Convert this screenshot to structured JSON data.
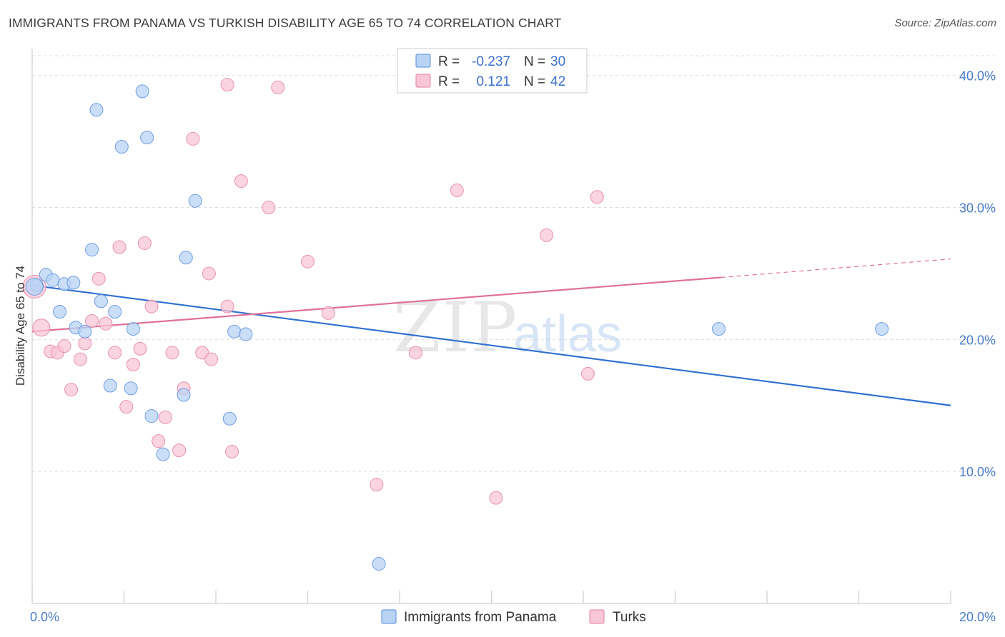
{
  "title": "IMMIGRANTS FROM PANAMA VS TURKISH DISABILITY AGE 65 TO 74 CORRELATION CHART",
  "source": "Source: ZipAtlas.com",
  "watermark": {
    "zip": "ZIP",
    "atlas": "atlas"
  },
  "legend": {
    "rows": [
      {
        "r_label": "R =",
        "r_value": "-0.237",
        "n_label": "N =",
        "n_value": "30"
      },
      {
        "r_label": "R =",
        "r_value": "0.121",
        "n_label": "N =",
        "n_value": "42"
      }
    ]
  },
  "bottom_legend": [
    "Immigrants from Panama",
    "Turks"
  ],
  "colors": {
    "blue_fill": "#b9d3f5",
    "blue_stroke": "#6d9de0",
    "blue_line": "#2f6fcf",
    "pink_fill": "#f8c6d6",
    "pink_stroke": "#e892ad",
    "pink_line": "#e0709a",
    "tick_text": "#4a7cc9",
    "grid": "#dddddd"
  },
  "chart_data": {
    "type": "scatter",
    "title": "IMMIGRANTS FROM PANAMA VS TURKISH DISABILITY AGE 65 TO 74 CORRELATION CHART",
    "xlabel": "",
    "ylabel": "Disability Age 65 to 74",
    "xlim": [
      0,
      20
    ],
    "ylim": [
      0,
      41.5
    ],
    "x_tick_labels": [
      "0.0%",
      "20.0%"
    ],
    "y_ticks": [
      10,
      20,
      30,
      40
    ],
    "y_tick_labels": [
      "10.0%",
      "20.0%",
      "30.0%",
      "40.0%"
    ],
    "grid": true,
    "legend_placement": "top-center",
    "series": [
      {
        "name": "Immigrants from Panama",
        "color": "#b9d3f5",
        "r": -0.237,
        "n": 30,
        "points": [
          [
            0.1,
            24.1
          ],
          [
            0.3,
            24.9
          ],
          [
            0.45,
            24.5
          ],
          [
            0.7,
            24.2
          ],
          [
            0.9,
            24.3
          ],
          [
            0.6,
            22.1
          ],
          [
            0.95,
            20.9
          ],
          [
            1.15,
            20.6
          ],
          [
            1.3,
            26.8
          ],
          [
            1.5,
            22.9
          ],
          [
            1.8,
            22.1
          ],
          [
            1.4,
            37.4
          ],
          [
            1.95,
            34.6
          ],
          [
            2.4,
            38.8
          ],
          [
            2.5,
            35.3
          ],
          [
            2.15,
            16.3
          ],
          [
            1.7,
            16.5
          ],
          [
            2.2,
            20.8
          ],
          [
            2.6,
            14.2
          ],
          [
            2.85,
            11.3
          ],
          [
            3.35,
            26.2
          ],
          [
            3.55,
            30.5
          ],
          [
            3.3,
            15.8
          ],
          [
            4.4,
            20.6
          ],
          [
            4.65,
            20.4
          ],
          [
            4.3,
            14.0
          ],
          [
            7.55,
            3.0
          ],
          [
            14.95,
            20.8
          ],
          [
            18.5,
            20.8
          ],
          [
            0.05,
            24.0
          ]
        ],
        "trend": {
          "x": [
            0,
            20
          ],
          "y": [
            24.1,
            15.0
          ]
        }
      },
      {
        "name": "Turks",
        "color": "#f8c6d6",
        "r": 0.121,
        "n": 42,
        "points": [
          [
            0.05,
            24.0
          ],
          [
            0.2,
            20.9
          ],
          [
            0.4,
            19.1
          ],
          [
            0.55,
            19.0
          ],
          [
            0.7,
            19.5
          ],
          [
            0.85,
            16.2
          ],
          [
            1.05,
            18.5
          ],
          [
            1.15,
            19.7
          ],
          [
            1.3,
            21.4
          ],
          [
            1.45,
            24.6
          ],
          [
            1.6,
            21.2
          ],
          [
            1.8,
            19.0
          ],
          [
            1.9,
            27.0
          ],
          [
            2.2,
            18.1
          ],
          [
            2.35,
            19.3
          ],
          [
            2.45,
            27.3
          ],
          [
            2.6,
            22.5
          ],
          [
            2.05,
            14.9
          ],
          [
            2.75,
            12.3
          ],
          [
            2.9,
            14.1
          ],
          [
            3.05,
            19.0
          ],
          [
            3.2,
            11.6
          ],
          [
            3.3,
            16.3
          ],
          [
            3.5,
            35.2
          ],
          [
            3.7,
            19.0
          ],
          [
            3.85,
            25.0
          ],
          [
            3.9,
            18.5
          ],
          [
            4.25,
            39.3
          ],
          [
            4.25,
            22.5
          ],
          [
            4.35,
            11.5
          ],
          [
            4.55,
            32.0
          ],
          [
            5.15,
            30.0
          ],
          [
            5.35,
            39.1
          ],
          [
            6.0,
            25.9
          ],
          [
            6.45,
            22.0
          ],
          [
            7.5,
            9.0
          ],
          [
            8.35,
            19.0
          ],
          [
            9.25,
            31.3
          ],
          [
            10.1,
            8.0
          ],
          [
            11.2,
            27.9
          ],
          [
            12.1,
            17.4
          ],
          [
            12.3,
            30.8
          ]
        ],
        "trend": {
          "x": [
            0,
            15
          ],
          "y": [
            20.6,
            24.7
          ]
        },
        "trend_dashed": {
          "x": [
            15,
            20
          ],
          "y": [
            24.7,
            26.1
          ]
        }
      }
    ]
  }
}
